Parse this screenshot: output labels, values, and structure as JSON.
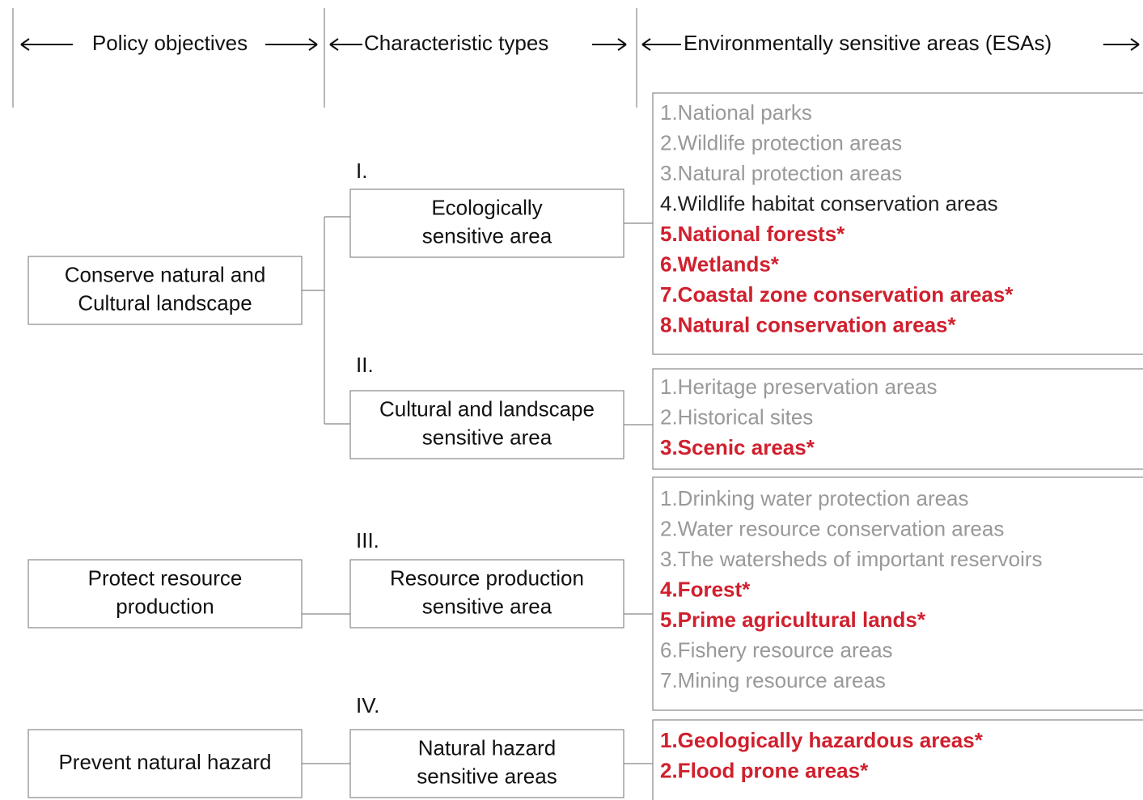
{
  "header": {
    "columns": [
      "Policy objectives",
      "Characteristic types",
      "Environmentally sensitive areas (ESAs)"
    ]
  },
  "objectives": [
    {
      "lines": [
        "Conserve natural and",
        "Cultural landscape"
      ]
    },
    {
      "lines": [
        "Protect  resource",
        "production"
      ]
    },
    {
      "lines": [
        "Prevent natural hazard"
      ]
    }
  ],
  "types": [
    {
      "numeral": "I.",
      "lines": [
        "Ecologically",
        "sensitive area"
      ]
    },
    {
      "numeral": "II.",
      "lines": [
        "Cultural and landscape",
        "sensitive area"
      ]
    },
    {
      "numeral": "III.",
      "lines": [
        "Resource production",
        "sensitive area"
      ]
    },
    {
      "numeral": "IV.",
      "lines": [
        "Natural hazard",
        "sensitive areas"
      ]
    }
  ],
  "esa_groups": [
    {
      "items": [
        {
          "text": "1.National parks",
          "color": "#999999"
        },
        {
          "text": "2.Wildlife protection areas",
          "color": "#999999"
        },
        {
          "text": "3.Natural protection areas",
          "color": "#999999"
        },
        {
          "text": "4.Wildlife habitat conservation areas",
          "color": "#222222"
        },
        {
          "text": "5.National forests*",
          "color": "#d0202e",
          "weight": "bold"
        },
        {
          "text": "6.Wetlands*",
          "color": "#d0202e",
          "weight": "bold"
        },
        {
          "text": "7.Coastal zone conservation areas*",
          "color": "#d0202e",
          "weight": "bold"
        },
        {
          "text": "8.Natural conservation areas*",
          "color": "#d0202e",
          "weight": "bold"
        }
      ]
    },
    {
      "items": [
        {
          "text": "1.Heritage preservation areas",
          "color": "#999999"
        },
        {
          "text": "2.Historical sites",
          "color": "#999999"
        },
        {
          "text": "3.Scenic areas*",
          "color": "#d0202e",
          "weight": "bold"
        }
      ]
    },
    {
      "items": [
        {
          "text": "1.Drinking water protection areas",
          "color": "#999999"
        },
        {
          "text": "2.Water resource conservation areas",
          "color": "#999999"
        },
        {
          "text": "3.The watersheds of important reservoirs",
          "color": "#999999"
        },
        {
          "text": "4.Forest*",
          "color": "#d0202e",
          "weight": "bold"
        },
        {
          "text": "5.Prime agricultural lands*",
          "color": "#d0202e",
          "weight": "bold"
        },
        {
          "text": "6.Fishery resource areas",
          "color": "#999999"
        },
        {
          "text": "7.Mining resource areas",
          "color": "#999999"
        }
      ]
    },
    {
      "items": [
        {
          "text": "1.Geologically hazardous areas*",
          "color": "#d0202e",
          "weight": "bold"
        },
        {
          "text": "2.Flood prone areas*",
          "color": "#d0202e",
          "weight": "bold"
        }
      ]
    }
  ]
}
